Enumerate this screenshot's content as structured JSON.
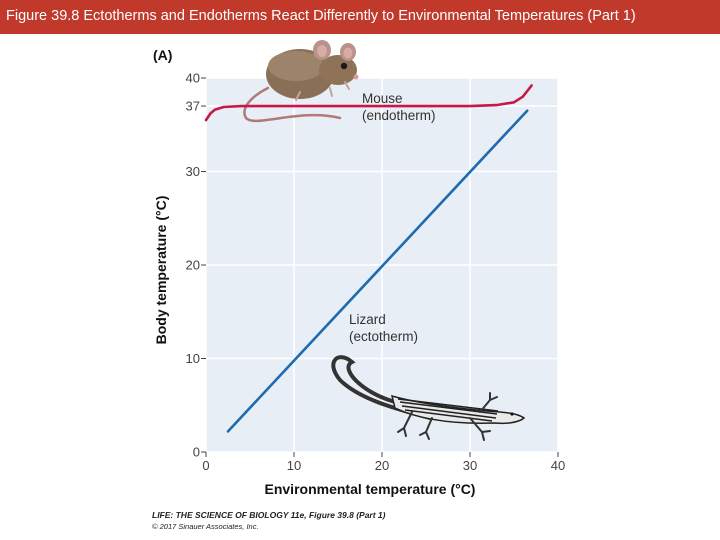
{
  "header": {
    "title": "Figure 39.8 Ectotherms and Endotherms React Differently to Environmental Temperatures (Part 1)",
    "background_color": "#c0392b"
  },
  "chart_data": {
    "type": "line",
    "panel_label": "(A)",
    "xlabel": "Environmental temperature (°C)",
    "ylabel": "Body temperature (°C)",
    "xlim": [
      0,
      40
    ],
    "ylim": [
      0,
      40
    ],
    "x_ticks": [
      0,
      10,
      20,
      30,
      40
    ],
    "y_ticks": [
      0,
      10,
      20,
      30,
      37,
      40
    ],
    "grid": true,
    "plot_background": "#e8eef5",
    "series": [
      {
        "name_line1": "Mouse",
        "name_line2": "(endotherm)",
        "color": "#c8184a",
        "x": [
          0,
          0.5,
          1,
          2,
          4,
          8,
          15,
          20,
          25,
          30,
          33,
          35,
          36,
          37
        ],
        "y": [
          35.5,
          36.2,
          36.6,
          36.9,
          37.0,
          37.0,
          37.0,
          37.0,
          37.0,
          37.0,
          37.1,
          37.4,
          38.0,
          39.2
        ]
      },
      {
        "name_line1": "Lizard",
        "name_line2": "(ectotherm)",
        "color": "#1f6bb0",
        "x": [
          2.5,
          36.5
        ],
        "y": [
          2.2,
          36.5
        ]
      }
    ],
    "illustrations": [
      "mouse-illustration",
      "lizard-illustration"
    ]
  },
  "credit": {
    "line1": "LIFE: THE SCIENCE OF BIOLOGY 11e, Figure 39.8 (Part 1)",
    "line2": "© 2017 Sinauer Associates, Inc."
  }
}
